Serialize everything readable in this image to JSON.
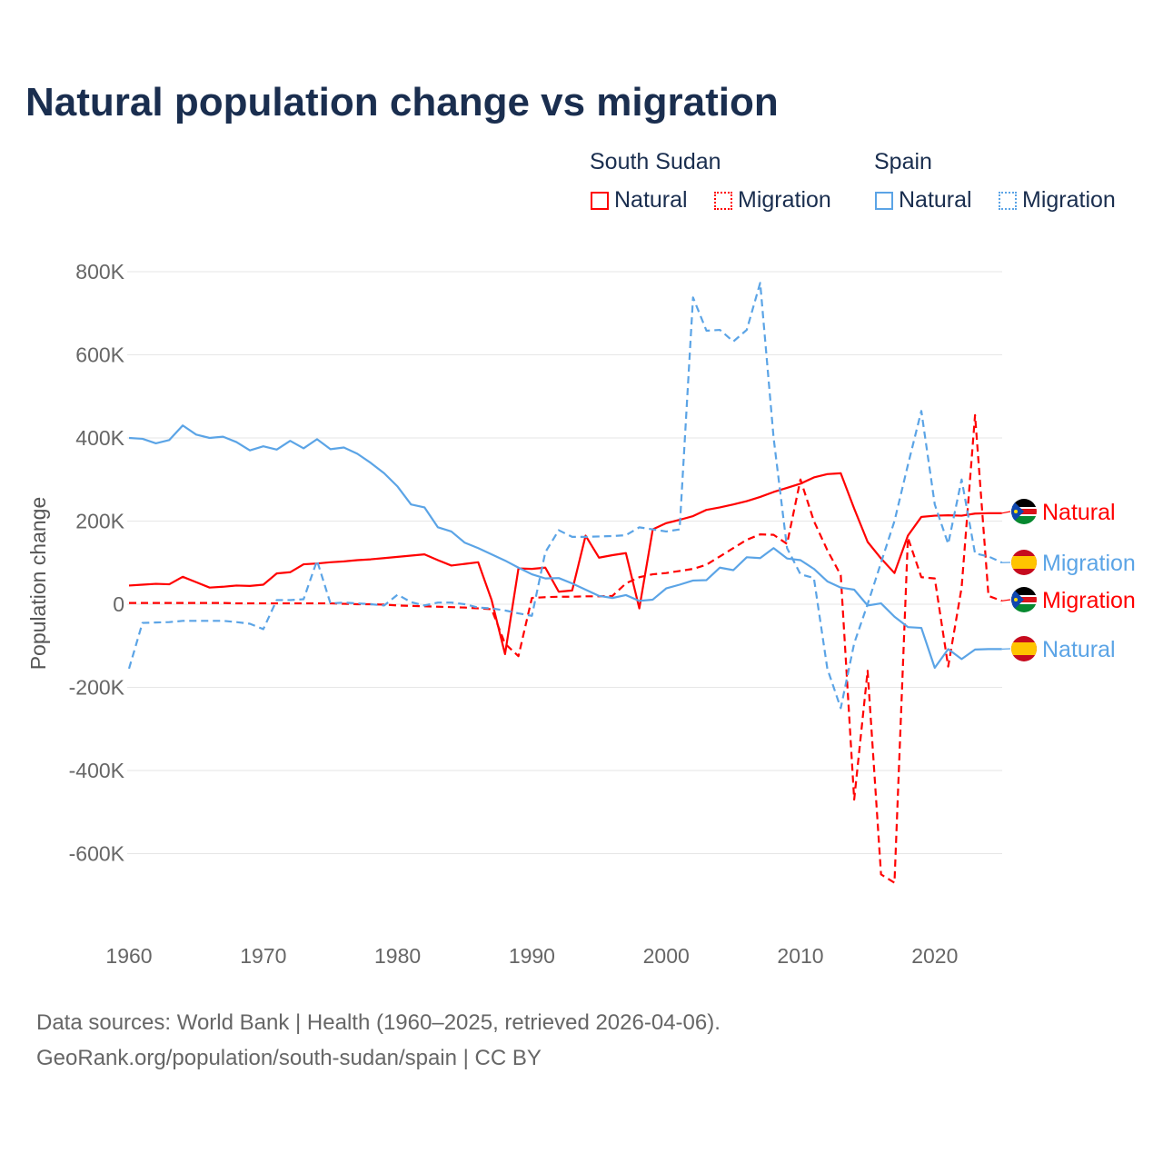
{
  "chart_data": {
    "type": "line",
    "title": "Natural population change vs migration",
    "ylabel": "Population change",
    "xlabel": "",
    "xlim": [
      1960,
      2025
    ],
    "ylim": [
      -700000,
      800000
    ],
    "x_ticks": [
      "1960",
      "1970",
      "1980",
      "1990",
      "2000",
      "2010",
      "2020"
    ],
    "y_ticks": [
      {
        "v": 800000,
        "label": "800K"
      },
      {
        "v": 600000,
        "label": "600K"
      },
      {
        "v": 400000,
        "label": "400K"
      },
      {
        "v": 200000,
        "label": "200K"
      },
      {
        "v": 0,
        "label": "0"
      },
      {
        "v": -200000,
        "label": "-200K"
      },
      {
        "v": -400000,
        "label": "-400K"
      },
      {
        "v": -600000,
        "label": "-600K"
      }
    ],
    "grid": true,
    "legend": {
      "position": "top-right",
      "groups": [
        {
          "name": "South Sudan",
          "items": [
            "Natural",
            "Migration"
          ]
        },
        {
          "name": "Spain",
          "items": [
            "Natural",
            "Migration"
          ]
        }
      ]
    },
    "x_start": 1960,
    "unit_note": "values in thousands",
    "series": [
      {
        "name": "South Sudan Natural",
        "country": "South Sudan",
        "kind": "Natural",
        "label": "Natural",
        "color": "#ff0000",
        "dashed": false,
        "values": [
          45,
          47,
          49,
          48,
          66,
          53,
          40,
          42,
          45,
          44,
          47,
          74,
          77,
          96,
          98,
          101,
          103,
          106,
          108,
          111,
          114,
          117,
          120,
          106,
          93,
          97,
          101,
          10,
          -120,
          86,
          85,
          88,
          30,
          33,
          165,
          112,
          118,
          123,
          -10,
          180,
          195,
          203,
          212,
          227,
          233,
          240,
          248,
          258,
          270,
          280,
          290,
          305,
          313,
          315,
          230,
          150,
          110,
          75,
          165,
          210,
          213,
          214,
          213,
          218,
          219,
          219
        ]
      },
      {
        "name": "South Sudan Migration",
        "country": "South Sudan",
        "kind": "Migration",
        "label": "Migration",
        "color": "#ff0000",
        "dashed": true,
        "values": [
          3,
          3,
          3,
          3,
          3,
          3,
          3,
          3,
          2,
          2,
          2,
          2,
          2,
          2,
          2,
          2,
          1,
          0,
          0,
          -1,
          -3,
          -4,
          -5,
          -6,
          -7,
          -8,
          -10,
          -12,
          -95,
          -125,
          15,
          17,
          18,
          18,
          19,
          19,
          20,
          50,
          65,
          72,
          75,
          80,
          85,
          95,
          115,
          135,
          155,
          168,
          167,
          145,
          300,
          200,
          130,
          70,
          -470,
          -160,
          -650,
          -670,
          160,
          65,
          62,
          -150,
          40,
          455,
          20,
          8
        ]
      },
      {
        "name": "Spain Natural",
        "country": "Spain",
        "kind": "Natural",
        "label": "Natural",
        "color": "#5ba4e6",
        "dashed": false,
        "values": [
          400,
          398,
          387,
          395,
          430,
          408,
          400,
          403,
          390,
          370,
          380,
          372,
          393,
          375,
          397,
          373,
          377,
          362,
          340,
          315,
          283,
          240,
          233,
          185,
          175,
          148,
          135,
          120,
          105,
          88,
          72,
          62,
          63,
          50,
          35,
          20,
          15,
          22,
          8,
          11,
          38,
          47,
          57,
          58,
          88,
          82,
          113,
          111,
          135,
          110,
          106,
          85,
          55,
          40,
          35,
          -3,
          2,
          -30,
          -55,
          -57,
          -153,
          -108,
          -132,
          -109,
          -108,
          -108
        ]
      },
      {
        "name": "Spain Migration",
        "country": "Spain",
        "kind": "Migration",
        "label": "Migration",
        "color": "#5ba4e6",
        "dashed": true,
        "values": [
          -155,
          -45,
          -44,
          -43,
          -40,
          -40,
          -40,
          -40,
          -43,
          -47,
          -60,
          10,
          10,
          12,
          105,
          2,
          4,
          2,
          0,
          -3,
          23,
          5,
          -3,
          4,
          4,
          0,
          -8,
          -10,
          -15,
          -22,
          -28,
          125,
          178,
          162,
          162,
          163,
          164,
          166,
          185,
          180,
          175,
          180,
          738,
          658,
          660,
          632,
          660,
          773,
          400,
          135,
          72,
          63,
          -155,
          -250,
          -94,
          0,
          100,
          200,
          335,
          465,
          240,
          145,
          300,
          122,
          115,
          100
        ]
      }
    ]
  },
  "footer": {
    "line1": "Data sources: World Bank | Health (1960–2025, retrieved 2026-04-06).",
    "line2": "GeoRank.org/population/south-sudan/spain | CC BY"
  }
}
